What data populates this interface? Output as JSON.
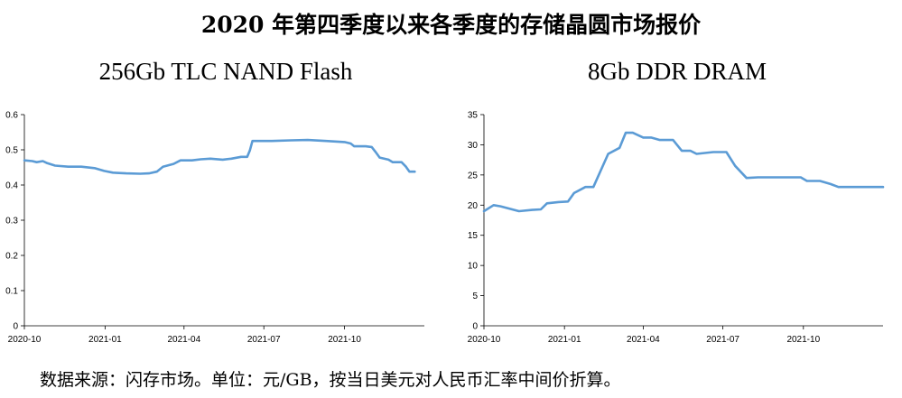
{
  "title": "2020 年第四季度以来各季度的存储晶圆市场报价",
  "source_note": "数据来源：闪存市场。单位：元/GB，按当日美元对人民币汇率中间价折算。",
  "series_color": "#5B9BD5",
  "chart_data": [
    {
      "type": "line",
      "title": "256Gb TLC NAND Flash",
      "ylim": [
        0,
        0.6
      ],
      "yticks": [
        "0",
        "0.1",
        "0.2",
        "0.3",
        "0.4",
        "0.5",
        "0.6"
      ],
      "xlim": [
        "2020-10-01",
        "2021-12-31"
      ],
      "xticks": [
        {
          "date": "2020-10-01",
          "label": "2020-10"
        },
        {
          "date": "2021-01-01",
          "label": "2021-01"
        },
        {
          "date": "2021-04-01",
          "label": "2021-04"
        },
        {
          "date": "2021-07-01",
          "label": "2021-07"
        },
        {
          "date": "2021-10-01",
          "label": "2021-10"
        }
      ],
      "grid": false,
      "series": [
        {
          "points": [
            [
              "2020-10-01",
              0.47
            ],
            [
              "2020-10-10",
              0.468
            ],
            [
              "2020-10-15",
              0.465
            ],
            [
              "2020-10-22",
              0.468
            ],
            [
              "2020-10-27",
              0.462
            ],
            [
              "2020-11-05",
              0.455
            ],
            [
              "2020-11-20",
              0.452
            ],
            [
              "2020-12-05",
              0.452
            ],
            [
              "2020-12-20",
              0.448
            ],
            [
              "2020-12-31",
              0.44
            ],
            [
              "2021-01-10",
              0.435
            ],
            [
              "2021-01-25",
              0.433
            ],
            [
              "2021-02-10",
              0.432
            ],
            [
              "2021-02-20",
              0.433
            ],
            [
              "2021-03-01",
              0.438
            ],
            [
              "2021-03-08",
              0.452
            ],
            [
              "2021-03-20",
              0.46
            ],
            [
              "2021-03-28",
              0.47
            ],
            [
              "2021-04-10",
              0.47
            ],
            [
              "2021-04-20",
              0.473
            ],
            [
              "2021-05-01",
              0.475
            ],
            [
              "2021-05-15",
              0.472
            ],
            [
              "2021-05-25",
              0.475
            ],
            [
              "2021-06-05",
              0.48
            ],
            [
              "2021-06-12",
              0.48
            ],
            [
              "2021-06-15",
              0.498
            ],
            [
              "2021-06-18",
              0.525
            ],
            [
              "2021-07-10",
              0.525
            ],
            [
              "2021-08-01",
              0.527
            ],
            [
              "2021-08-20",
              0.528
            ],
            [
              "2021-09-10",
              0.525
            ],
            [
              "2021-10-01",
              0.522
            ],
            [
              "2021-10-08",
              0.518
            ],
            [
              "2021-10-12",
              0.51
            ],
            [
              "2021-10-25",
              0.51
            ],
            [
              "2021-11-01",
              0.508
            ],
            [
              "2021-11-05",
              0.495
            ],
            [
              "2021-11-10",
              0.478
            ],
            [
              "2021-11-20",
              0.472
            ],
            [
              "2021-11-25",
              0.465
            ],
            [
              "2021-12-05",
              0.465
            ],
            [
              "2021-12-10",
              0.452
            ],
            [
              "2021-12-14",
              0.438
            ],
            [
              "2021-12-20",
              0.438
            ]
          ]
        }
      ]
    },
    {
      "type": "line",
      "title": "8Gb DDR DRAM",
      "ylim": [
        0,
        35
      ],
      "yticks": [
        "0",
        "5",
        "10",
        "15",
        "20",
        "25",
        "30",
        "35"
      ],
      "xlim": [
        "2020-10-01",
        "2021-12-31"
      ],
      "xticks": [
        {
          "date": "2020-10-01",
          "label": "2020-10"
        },
        {
          "date": "2021-01-01",
          "label": "2021-01"
        },
        {
          "date": "2021-04-01",
          "label": "2021-04"
        },
        {
          "date": "2021-07-01",
          "label": "2021-07"
        },
        {
          "date": "2021-10-01",
          "label": "2021-10"
        }
      ],
      "grid": false,
      "series": [
        {
          "points": [
            [
              "2020-10-01",
              19.0
            ],
            [
              "2020-10-12",
              20.0
            ],
            [
              "2020-10-20",
              19.8
            ],
            [
              "2020-11-10",
              19.0
            ],
            [
              "2020-11-25",
              19.2
            ],
            [
              "2020-12-05",
              19.3
            ],
            [
              "2020-12-12",
              20.3
            ],
            [
              "2020-12-25",
              20.5
            ],
            [
              "2021-01-05",
              20.6
            ],
            [
              "2021-01-12",
              22.0
            ],
            [
              "2021-01-25",
              23.0
            ],
            [
              "2021-02-03",
              23.0
            ],
            [
              "2021-02-20",
              28.5
            ],
            [
              "2021-03-05",
              29.5
            ],
            [
              "2021-03-12",
              32.0
            ],
            [
              "2021-03-20",
              32.0
            ],
            [
              "2021-04-01",
              31.2
            ],
            [
              "2021-04-10",
              31.2
            ],
            [
              "2021-04-20",
              30.8
            ],
            [
              "2021-05-05",
              30.8
            ],
            [
              "2021-05-15",
              29.0
            ],
            [
              "2021-05-25",
              29.0
            ],
            [
              "2021-06-01",
              28.5
            ],
            [
              "2021-06-20",
              28.8
            ],
            [
              "2021-07-05",
              28.8
            ],
            [
              "2021-07-15",
              26.5
            ],
            [
              "2021-07-28",
              24.5
            ],
            [
              "2021-08-10",
              24.6
            ],
            [
              "2021-09-10",
              24.6
            ],
            [
              "2021-09-28",
              24.6
            ],
            [
              "2021-10-05",
              24.0
            ],
            [
              "2021-10-20",
              24.0
            ],
            [
              "2021-11-01",
              23.5
            ],
            [
              "2021-11-10",
              23.0
            ],
            [
              "2021-12-05",
              23.0
            ],
            [
              "2021-12-20",
              23.0
            ],
            [
              "2021-12-31",
              23.0
            ]
          ]
        }
      ]
    }
  ]
}
